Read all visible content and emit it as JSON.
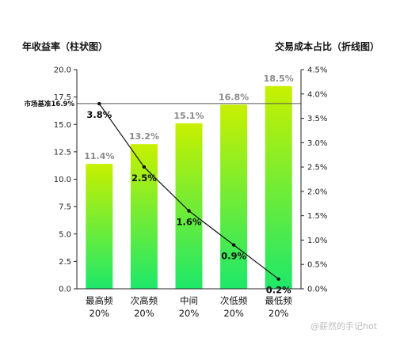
{
  "chart_data": {
    "type": "bar",
    "left_axis_title": "年收益率（柱状图）",
    "right_axis_title": "交易成本占比（折线图）",
    "categories": [
      [
        "最高频",
        "20%"
      ],
      [
        "次高频",
        "20%"
      ],
      [
        "中间",
        "20%"
      ],
      [
        "次低频",
        "20%"
      ],
      [
        "最低频",
        "20%"
      ]
    ],
    "series": [
      {
        "values": [
          11.4,
          13.2,
          15.1,
          16.8,
          18.5
        ],
        "labels": [
          "11.4%",
          "13.2%",
          "15.1%",
          "16.8%",
          "18.5%"
        ]
      },
      {
        "values": [
          3.8,
          2.5,
          1.6,
          0.9,
          0.2
        ],
        "labels": [
          "3.8%",
          "2.5%",
          "1.6%",
          "0.9%",
          "0.2%"
        ]
      }
    ],
    "reference_line": {
      "label": "市场基准16.9%",
      "value": 16.9
    },
    "y_left": {
      "min": 0,
      "max": 20,
      "ticks": [
        "0.0",
        "2.5",
        "5.0",
        "7.5",
        "10.0",
        "12.5",
        "15.0",
        "17.5",
        "20.0"
      ]
    },
    "y_right": {
      "min": 0,
      "max": 4.5,
      "ticks": [
        "0.0%",
        "0.5%",
        "1.0%",
        "1.5%",
        "2.0%",
        "2.5%",
        "3.0%",
        "3.5%",
        "4.0%",
        "4.5%"
      ]
    },
    "colors": {
      "bar_top": "#c8f000",
      "bar_bottom": "#1ee86a",
      "line": "#111111",
      "bar_label": "#8a8a8a",
      "reference": "#555555"
    }
  },
  "watermark": "@薪然的手记hot"
}
